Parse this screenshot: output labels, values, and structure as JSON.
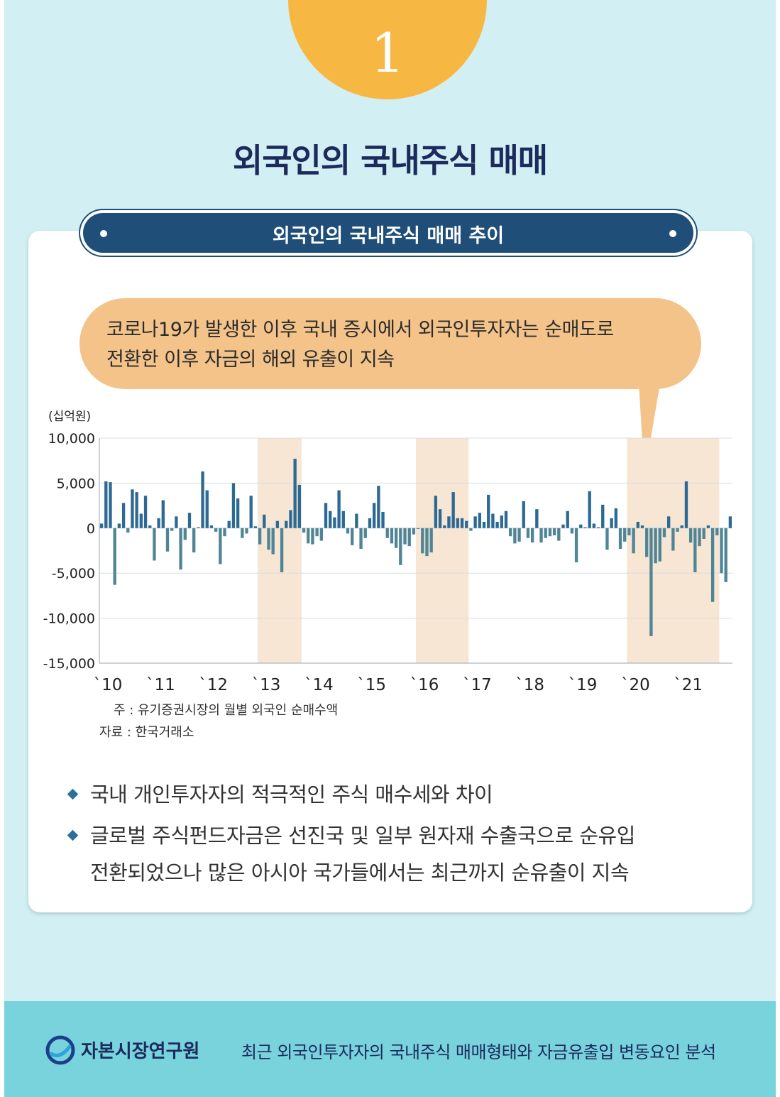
{
  "header": {
    "badge_number": "1",
    "title": "외국인의 국내주식 매매"
  },
  "banner": {
    "title": "외국인의 국내주식 매매 추이"
  },
  "callout": {
    "line1": "코로나19가 발생한 이후 국내 증시에서 외국인투자자는 순매도로",
    "line2": "전환한 이후 자금의 해외 유출이 지속"
  },
  "chart_data": {
    "type": "bar",
    "unit_label": "(십억원)",
    "ylim": [
      -15000,
      10000
    ],
    "y_ticks": [
      10000,
      5000,
      0,
      -5000,
      -10000,
      -15000
    ],
    "y_tick_labels": [
      "10,000",
      "5,000",
      "0",
      "-5,000",
      "-10,000",
      "-15,000"
    ],
    "x_tick_labels": [
      "`10",
      "`11",
      "`12",
      "`13",
      "`14",
      "`15",
      "`16",
      "`17",
      "`18",
      "`19",
      "`20",
      "`21"
    ],
    "months_per_year": 12,
    "highlighted_ranges": [
      [
        36,
        46
      ],
      [
        72,
        84
      ],
      [
        120,
        141
      ]
    ],
    "colors": {
      "positive": "#2d6a93",
      "negative": "#4f8595",
      "highlight": "#f7e6d4",
      "grid": "#d8dde2"
    },
    "values": [
      500,
      5200,
      5100,
      -6300,
      500,
      2800,
      -500,
      4300,
      4000,
      1600,
      3600,
      300,
      -3600,
      1100,
      3100,
      -2600,
      -300,
      1300,
      -4600,
      -1300,
      1700,
      -2700,
      100,
      6300,
      4200,
      300,
      -400,
      -4000,
      -900,
      800,
      5000,
      3300,
      -1100,
      -600,
      3600,
      200,
      -1800,
      1500,
      -2400,
      -2900,
      800,
      -4900,
      800,
      2000,
      7700,
      4800,
      -500,
      -1700,
      -1800,
      -900,
      -1400,
      2800,
      1900,
      1200,
      4200,
      1900,
      -600,
      -1900,
      1600,
      -2300,
      -1100,
      1100,
      2800,
      4700,
      1800,
      -1100,
      -1700,
      -2200,
      -4100,
      -1800,
      -2000,
      -700,
      -100,
      -2800,
      -3100,
      -2700,
      3600,
      2100,
      300,
      1300,
      4000,
      1100,
      1100,
      800,
      -300,
      1300,
      1700,
      700,
      3700,
      1600,
      700,
      1400,
      1900,
      -900,
      -1700,
      -1500,
      3000,
      -1100,
      -1600,
      2100,
      -1600,
      -1100,
      -900,
      -800,
      -1400,
      400,
      1900,
      -600,
      -3800,
      400,
      100,
      4100,
      500,
      100,
      2600,
      -2400,
      1100,
      2200,
      -2300,
      -1500,
      -800,
      -2800,
      700,
      300,
      -3200,
      -12000,
      -3900,
      -3700,
      -1000,
      1300,
      -2500,
      -400,
      300,
      5200,
      -1600,
      -4900,
      -2000,
      -1200,
      300,
      -8200,
      -800,
      -5000,
      -6000,
      1300
    ]
  },
  "notes": {
    "note_line": "주 : 유기증권시장의 월별 외국인 순매수액",
    "source_line": "자료 : 한국거래소"
  },
  "bullets": [
    {
      "text": "국내 개인투자자의 적극적인 주식 매수세와 차이"
    },
    {
      "line1": "글로벌 주식펀드자금은 선진국 및 일부 원자재 수출국으로 순유입",
      "line2": "전환되었으나 많은 아시아 국가들에서는 최근까지 순유출이 지속"
    }
  ],
  "footer": {
    "org_name": "자본시장연구원",
    "report_title": "최근 외국인투자자의 국내주식 매매형태와 자금유출입 변동요인 분석",
    "logo_icon": "kcmi-logo-icon"
  }
}
